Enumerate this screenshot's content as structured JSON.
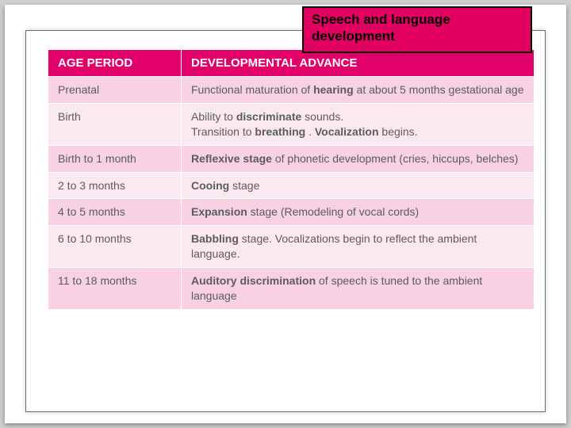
{
  "title": "Speech and language development",
  "colors": {
    "header_bg": "#e2006b",
    "title_bg": "#e20060",
    "row_odd": "#f8d1e2",
    "row_even": "#fbe9f1",
    "text": "#5c5c5c",
    "page_bg": "#d0d0d0"
  },
  "table": {
    "columns": [
      "AGE PERIOD",
      "DEVELOPMENTAL ADVANCE"
    ],
    "rows": [
      {
        "age": "Prenatal",
        "advance": "Functional maturation of <b>hearing</b> at about 5  months gestational age"
      },
      {
        "age": "Birth",
        "advance": "Ability to <b>discriminate</b> sounds.<br>Transition to <b>breathing</b> . <b>Vocalization</b> begins."
      },
      {
        "age": "Birth to 1 month",
        "advance": "<b>Reflexive stage</b> of phonetic development  (cries, hiccups, belches)"
      },
      {
        "age": "2 to 3 months",
        "advance": "<b>Cooing</b> stage"
      },
      {
        "age": "4 to 5 months",
        "advance": "<b>Expansion</b> stage (Remodeling of vocal  cords)"
      },
      {
        "age": "6 to 10 months",
        "advance": "<b>Babbling</b> stage. Vocalizations begin to  reflect the ambient language."
      },
      {
        "age": "11 to 18 months",
        "advance": "<b>Auditory discrimination</b> of speech is tuned to  the ambient language"
      }
    ]
  }
}
